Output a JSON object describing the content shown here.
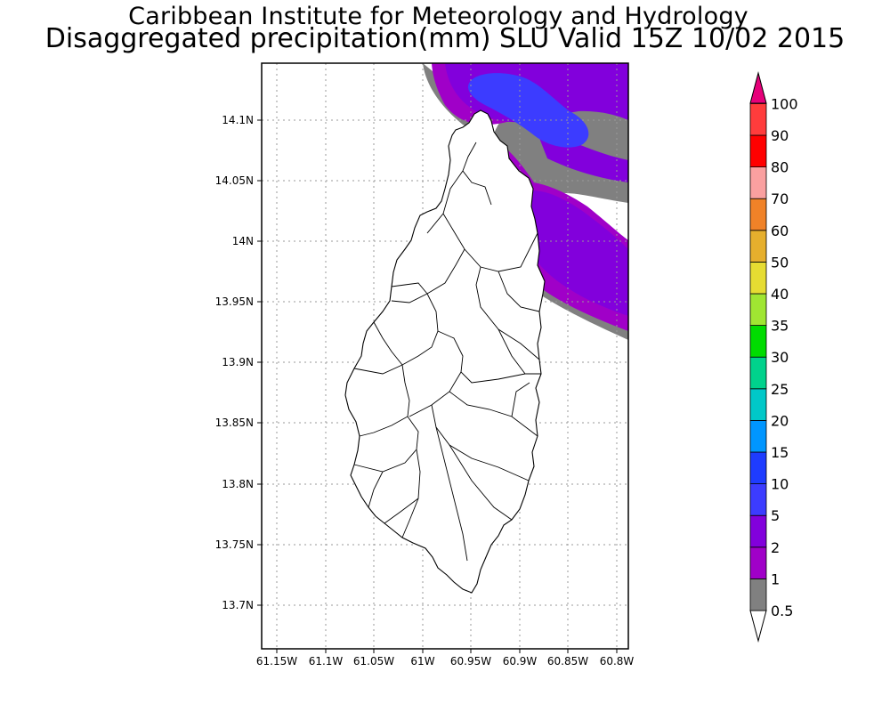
{
  "title": {
    "line1": "Caribbean Institute for Meteorology and Hydrology",
    "line2": "Disaggregated precipitation(mm) SLU Valid 15Z 10/02 2015"
  },
  "map": {
    "region": "Saint Lucia",
    "lon_range": [
      -61.165,
      -60.79
    ],
    "lat_range": [
      13.665,
      14.147
    ],
    "lon_ticks": [
      "61.15W",
      "61.1W",
      "61.05W",
      "61W",
      "60.95W",
      "60.9W",
      "60.85W",
      "60.8W"
    ],
    "lat_ticks": [
      "14.1N",
      "14.05N",
      "14N",
      "13.95N",
      "13.9N",
      "13.85N",
      "13.8N",
      "13.75N",
      "13.7N"
    ],
    "grid": "dotted"
  },
  "legend": {
    "labels": [
      "0.5",
      "1",
      "2",
      "5",
      "10",
      "15",
      "20",
      "25",
      "30",
      "35",
      "40",
      "50",
      "60",
      "70",
      "80",
      "90",
      "100"
    ],
    "colors": [
      "#808080",
      "#a000c8",
      "#8200dc",
      "#3c3cff",
      "#1e3cff",
      "#0096ff",
      "#00c8c8",
      "#00d28c",
      "#00dc00",
      "#a0e632",
      "#e6dc32",
      "#e6af2d",
      "#f08228",
      "#faa0a0",
      "#ff0000",
      "#ff3c3c",
      "#f03c3c",
      "#e6007a"
    ]
  }
}
